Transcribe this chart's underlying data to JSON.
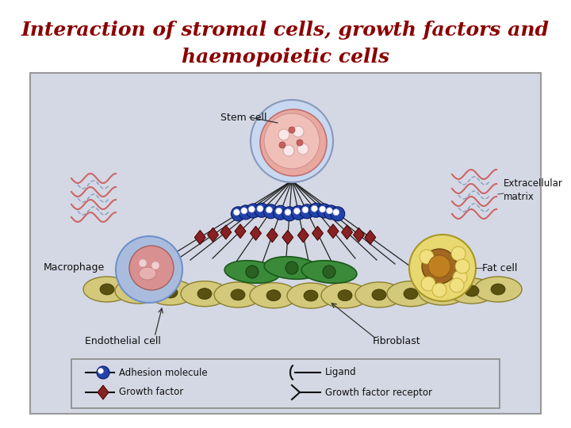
{
  "title_line1": "Interaction of stromal cells, growth factors and",
  "title_line2": "haemopoietic cells",
  "title_color": "#8B0000",
  "title_fontsize": 18,
  "bg_color": "#FFFFFF",
  "diagram_bg": "#D8DCE8",
  "fig_width": 7.2,
  "fig_height": 5.4,
  "dpi": 100,
  "labels": {
    "stem_cell": "Stem cell",
    "macrophage": "Macrophage",
    "endothelial_cell": "Endothelial cell",
    "fibroblast": "Fibroblast",
    "extracellular_matrix": "Extracellular\nmatrix",
    "fat_cell": "Fat cell"
  },
  "legend_items": [
    {
      "label": "Adhesion molecule"
    },
    {
      "label": "Growth factor"
    },
    {
      "label": "Ligand"
    },
    {
      "label": "Growth factor receptor"
    }
  ]
}
